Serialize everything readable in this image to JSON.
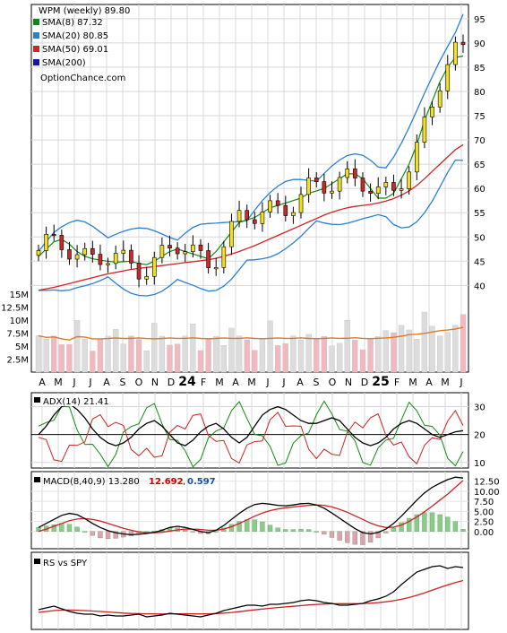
{
  "header": {
    "ticker_label": "WPM (weekly) 89.80",
    "legend": [
      {
        "label": "SMA(8) 87.32",
        "color": "#118811"
      },
      {
        "label": "SMA(20) 80.85",
        "color": "#2a7fd4"
      },
      {
        "label": "SMA(50) 69.01",
        "color": "#d22222"
      },
      {
        "label": "SMA(200)",
        "color": "#1515b0"
      }
    ],
    "site": "OptionChance.com"
  },
  "colors": {
    "up_candle": "#f0e020",
    "down_candle": "#cc2a2a",
    "volume_up": "#dcdcdc",
    "volume_down": "#f2b8c0",
    "volume_ma": "#e07a20",
    "bollinger": "#2a7fd4",
    "sma8": "#118811",
    "sma50": "#d22222",
    "adx": "#000000",
    "di_plus": "#118811",
    "di_minus": "#cc2222",
    "macd_line": "#000000",
    "signal_line": "#cc2222",
    "histogram": "#88cc88",
    "rs_line": "#000000",
    "rs_ma": "#cc2222"
  },
  "chart_data": [
    {
      "type": "line",
      "title": "WPM (weekly) 89.80",
      "x_ticks": [
        "A",
        "M",
        "J",
        "J",
        "A",
        "S",
        "O",
        "N",
        "D",
        "24",
        "F",
        "M",
        "A",
        "M",
        "J",
        "J",
        "A",
        "S",
        "O",
        "N",
        "D",
        "25",
        "F",
        "M",
        "A",
        "M",
        "J"
      ],
      "y_ticks": [
        40,
        45,
        50,
        55,
        60,
        65,
        70,
        75,
        80,
        85,
        90,
        95
      ],
      "ylim": [
        36,
        97
      ],
      "series": [
        {
          "name": "SMA(8) 87.32",
          "values": [
            46,
            47.5,
            49,
            49.5,
            48.5,
            47,
            46,
            45.5,
            45.2,
            45,
            44.8,
            44.9,
            45,
            44.5,
            44.3,
            45,
            46,
            47,
            47.5,
            47,
            46.5,
            46,
            45.5,
            47,
            49,
            51,
            53,
            53.5,
            54,
            55,
            56,
            56.5,
            57,
            57.5,
            58,
            59,
            59.5,
            60,
            61,
            62,
            63,
            63,
            62,
            60,
            58,
            58,
            59,
            62,
            65,
            69,
            74,
            78,
            82,
            85,
            87,
            87.3
          ]
        },
        {
          "name": "SMA(20) 80.85",
          "values": [
            43,
            44,
            45,
            45.5,
            46,
            46.5,
            46.5,
            46.3,
            46,
            45.8,
            45.5,
            45.2,
            45,
            44.9,
            44.8,
            44.7,
            44.7,
            44.9,
            45.3,
            45.7,
            46,
            46,
            45.8,
            45.9,
            46.4,
            47.2,
            48.2,
            49.3,
            50.4,
            51.5,
            52.5,
            53.5,
            54.5,
            55.3,
            56,
            56.7,
            57.4,
            58,
            58.6,
            59.2,
            59.8,
            60.2,
            60.3,
            60,
            59.5,
            59.2,
            59.5,
            60.6,
            62.3,
            64.6,
            67.3,
            70.2,
            73.3,
            76.3,
            79,
            80.85
          ]
        },
        {
          "name": "SMA(50) 69.01",
          "values": [
            39,
            39.3,
            39.6,
            40,
            40.4,
            40.8,
            41.2,
            41.6,
            42,
            42.4,
            42.7,
            43,
            43.3,
            43.5,
            43.7,
            43.9,
            44.1,
            44.3,
            44.5,
            44.7,
            44.9,
            45.1,
            45.3,
            45.6,
            46,
            46.5,
            47,
            47.6,
            48.2,
            48.9,
            49.6,
            50.3,
            51,
            51.7,
            52.4,
            53.1,
            53.8,
            54.5,
            55.1,
            55.6,
            56,
            56.3,
            56.5,
            56.7,
            57,
            57.4,
            57.9,
            58.6,
            59.5,
            60.6,
            62,
            63.5,
            65,
            66.5,
            68,
            69.01
          ]
        }
      ]
    },
    {
      "type": "bar",
      "title": "Volume",
      "y_ticks": [
        "15M",
        "12.5M",
        "10M",
        "7.5M",
        "5M",
        "2.5M"
      ],
      "ylim": [
        0,
        15000000
      ]
    },
    {
      "type": "line",
      "title": "ADX(14) 21.41",
      "y_ticks": [
        10,
        20,
        30
      ],
      "ylim": [
        8,
        35
      ],
      "series": [
        {
          "name": "ADX(14) 21.41",
          "values": [
            20,
            23,
            27,
            30,
            31,
            29,
            26,
            22,
            19,
            17,
            16,
            17,
            19,
            22,
            24,
            25,
            23,
            20,
            17,
            16,
            18,
            21,
            23,
            24,
            22,
            19,
            17,
            19,
            23,
            27,
            29,
            30,
            29,
            27,
            25,
            24,
            24,
            25,
            26,
            25,
            22,
            19,
            17,
            16,
            17,
            19,
            22,
            24,
            25,
            24,
            22,
            20,
            19,
            20,
            21,
            21.41
          ]
        }
      ]
    },
    {
      "type": "line",
      "title": "MACD(8,40,9) 13.280",
      "y_ticks": [
        0,
        2.5,
        5,
        7.5,
        10,
        12.5
      ],
      "ylim": [
        -2.5,
        14
      ],
      "series": [
        {
          "name": "MACD(8,40,9) 13.280",
          "values": [
            1,
            2,
            3,
            4,
            4.5,
            4.2,
            3.2,
            2,
            1,
            0.2,
            -0.3,
            -0.6,
            -0.8,
            -0.7,
            -0.5,
            -0.2,
            0.3,
            1,
            1.3,
            1,
            0.5,
            0,
            -0.3,
            0.3,
            1.5,
            3,
            4.5,
            5.8,
            6.7,
            7,
            6.8,
            6.5,
            6.4,
            6.6,
            6.9,
            7,
            6.6,
            5.8,
            4.6,
            3.3,
            2,
            0.7,
            -0.3,
            -0.6,
            -0.2,
            0.6,
            2,
            3.8,
            5.8,
            7.8,
            9.6,
            11,
            12,
            12.9,
            13.5,
            13.28
          ]
        },
        {
          "name": "12.692",
          "values": [
            0,
            0.6,
            1.3,
            2,
            2.7,
            3.1,
            3.2,
            3,
            2.6,
            2,
            1.4,
            0.8,
            0.3,
            -0.1,
            -0.3,
            -0.3,
            -0.2,
            0.1,
            0.4,
            0.6,
            0.6,
            0.5,
            0.3,
            0.3,
            0.6,
            1.2,
            2,
            2.9,
            3.8,
            4.6,
            5.2,
            5.6,
            5.9,
            6.1,
            6.3,
            6.5,
            6.6,
            6.5,
            6.1,
            5.5,
            4.8,
            3.9,
            3,
            2.1,
            1.4,
            1,
            1.1,
            1.6,
            2.5,
            3.6,
            4.9,
            6.3,
            7.8,
            9.3,
            11,
            12.692
          ]
        }
      ]
    },
    {
      "type": "line",
      "title": "RS vs SPY",
      "series": [
        {
          "name": "RS vs SPY",
          "values": [
            40,
            42,
            44,
            41,
            38,
            36,
            35,
            35,
            33,
            34,
            33,
            33,
            34,
            35,
            32,
            33,
            34,
            36,
            35,
            34,
            33,
            32,
            34,
            36,
            39,
            41,
            43,
            45,
            45,
            44,
            46,
            46,
            47,
            48,
            50,
            51,
            50,
            48,
            47,
            45,
            45,
            46,
            47,
            50,
            52,
            55,
            60,
            68,
            75,
            82,
            85,
            88,
            89,
            86,
            88,
            87
          ]
        },
        {
          "name": "RS MA",
          "values": [
            37,
            38,
            39,
            39.5,
            39.6,
            39.4,
            39,
            38.5,
            38,
            37.4,
            36.8,
            36.2,
            35.8,
            35.6,
            35.4,
            35.3,
            35.2,
            35.3,
            35.4,
            35.5,
            35.4,
            35.3,
            35.4,
            35.7,
            36.2,
            36.9,
            37.8,
            38.8,
            39.8,
            40.7,
            41.6,
            42.4,
            43.1,
            43.8,
            44.5,
            45.3,
            45.9,
            46.3,
            46.6,
            46.7,
            46.7,
            46.7,
            46.9,
            47.3,
            47.9,
            48.8,
            50,
            51.6,
            53.6,
            56,
            58.7,
            61.7,
            64.7,
            67.6,
            70.3,
            72.5
          ]
        }
      ]
    }
  ]
}
